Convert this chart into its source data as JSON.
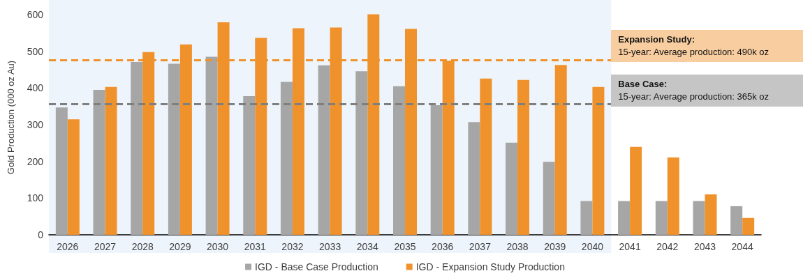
{
  "chart_data": {
    "type": "bar",
    "ylabel": "Gold Production (000 oz Au)",
    "categories": [
      "2026",
      "2027",
      "2028",
      "2029",
      "2030",
      "2031",
      "2032",
      "2033",
      "2034",
      "2035",
      "2036",
      "2037",
      "2038",
      "2039",
      "2040",
      "2041",
      "2042",
      "2043",
      "2044"
    ],
    "series": [
      {
        "name": "IGD - Base Case Production",
        "color": "#a6a6a6",
        "values": [
          347,
          395,
          471,
          466,
          485,
          378,
          417,
          462,
          446,
          405,
          353,
          307,
          251,
          199,
          92,
          92,
          92,
          92,
          78
        ]
      },
      {
        "name": "IGD - Expansion Study Production",
        "color": "#f0922b",
        "values": [
          315,
          403,
          498,
          519,
          579,
          537,
          563,
          565,
          601,
          561,
          475,
          426,
          422,
          463,
          403,
          240,
          211,
          110,
          46
        ]
      }
    ],
    "ylim": [
      0,
      640
    ],
    "yticks": [
      0,
      100,
      200,
      300,
      400,
      500,
      600
    ],
    "ref_lines": [
      {
        "axis": "y",
        "value": 477,
        "color": "#f0922b",
        "line_style": "dashed"
      },
      {
        "axis": "y",
        "value": 356,
        "color": "#7f7f7f",
        "line_style": "dashed"
      }
    ],
    "annotations": [
      "Expansion Study:\n15-year: Average production: 490k oz",
      "Base Case:\n15-year: Average production: 365k oz"
    ],
    "bands": [
      {
        "axis": "x",
        "from": "2026",
        "to": "2040",
        "color": "#eef4fb"
      }
    ],
    "legend": "bottom",
    "grid": false
  }
}
